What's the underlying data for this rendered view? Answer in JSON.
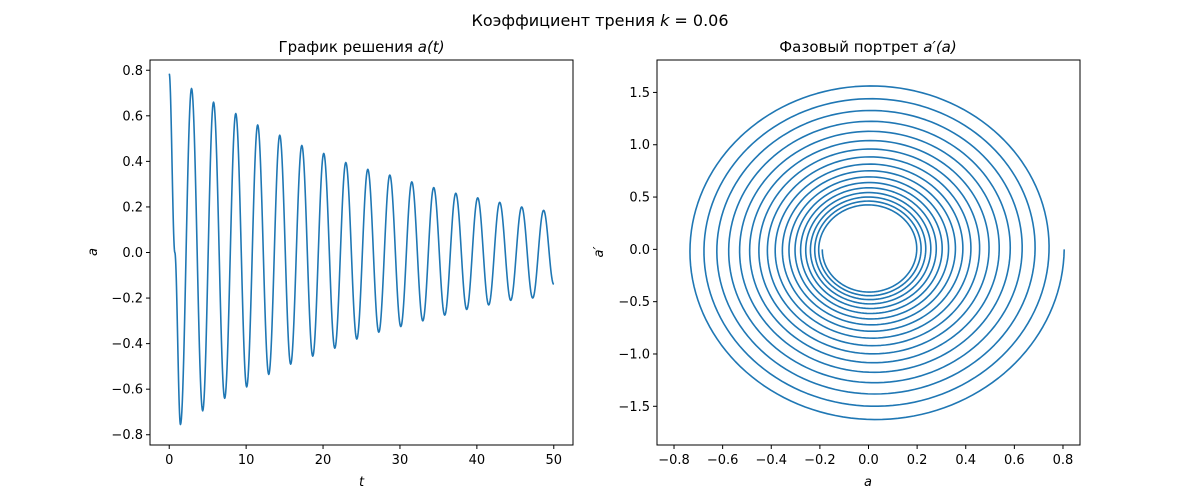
{
  "figure": {
    "suptitle": "Коэффициент трения",
    "suptitle_var": "k",
    "suptitle_value": " = 0.06",
    "line_color": "#1f77b4"
  },
  "chart_data": [
    {
      "type": "line",
      "title_text": "График решения ",
      "title_math": "a(t)",
      "xlabel": "t",
      "ylabel": "a",
      "xlim": [
        -2.5,
        52.5
      ],
      "ylim": [
        -0.845,
        0.845
      ],
      "xticks": [
        0,
        10,
        20,
        30,
        40,
        50
      ],
      "xtick_labels": [
        "0",
        "10",
        "20",
        "30",
        "40",
        "50"
      ],
      "yticks": [
        -0.8,
        -0.6,
        -0.4,
        -0.2,
        0.0,
        0.2,
        0.4,
        0.6,
        0.8
      ],
      "ytick_labels": [
        "−0.8",
        "−0.6",
        "−0.4",
        "−0.2",
        "0.0",
        "0.2",
        "0.4",
        "0.6",
        "0.8"
      ],
      "grid": false,
      "series": [
        {
          "t": [
            0,
            0.73,
            1.46,
            2.9,
            4.35,
            5.76,
            7.21,
            8.65,
            10.07,
            11.5,
            12.94,
            14.37,
            15.79,
            17.24,
            18.66,
            20.09,
            21.53,
            22.96,
            24.39,
            25.82,
            27.25,
            28.68,
            30.11,
            31.54,
            32.97,
            34.39,
            35.82,
            37.26,
            38.68,
            40.11,
            41.54,
            42.97,
            44.4,
            45.83,
            47.26,
            48.68,
            50
          ],
          "a": [
            0.785,
            0.0,
            -0.755,
            0.72,
            -0.695,
            0.66,
            -0.64,
            0.61,
            -0.59,
            0.56,
            -0.535,
            0.515,
            -0.49,
            0.47,
            -0.455,
            0.435,
            -0.42,
            0.395,
            -0.38,
            0.365,
            -0.35,
            0.34,
            -0.325,
            0.31,
            -0.3,
            0.285,
            -0.275,
            0.26,
            -0.25,
            0.24,
            -0.23,
            0.22,
            -0.21,
            0.2,
            -0.2,
            0.185,
            -0.14
          ]
        }
      ]
    },
    {
      "type": "line",
      "title_text": "Фазовый портрет ",
      "title_math": "a′(a)",
      "xlabel": "a",
      "ylabel": "a′",
      "xlim": [
        -0.87,
        0.87
      ],
      "ylim": [
        -1.87,
        1.81
      ],
      "xticks": [
        -0.8,
        -0.6,
        -0.4,
        -0.2,
        0.0,
        0.2,
        0.4,
        0.6,
        0.8
      ],
      "xtick_labels": [
        "−0.8",
        "−0.6",
        "−0.4",
        "−0.2",
        "0.0",
        "0.2",
        "0.4",
        "0.6",
        "0.8"
      ],
      "yticks": [
        -1.5,
        -1.0,
        -0.5,
        0.0,
        0.5,
        1.0,
        1.5
      ],
      "ytick_labels": [
        "−1.5",
        "−1.0",
        "−0.5",
        "0.0",
        "0.5",
        "1.0",
        "1.5"
      ],
      "grid": false,
      "series": [
        {
          "start_a": 0.785,
          "start_da": 0.0,
          "end_a": -0.14,
          "end_da": 0.24,
          "turns": 17.5,
          "max_da": 1.63,
          "min_da": -1.7,
          "inner_a_range": [
            -0.2,
            0.2
          ],
          "inner_da_range": [
            -0.4,
            0.42
          ]
        }
      ]
    }
  ]
}
